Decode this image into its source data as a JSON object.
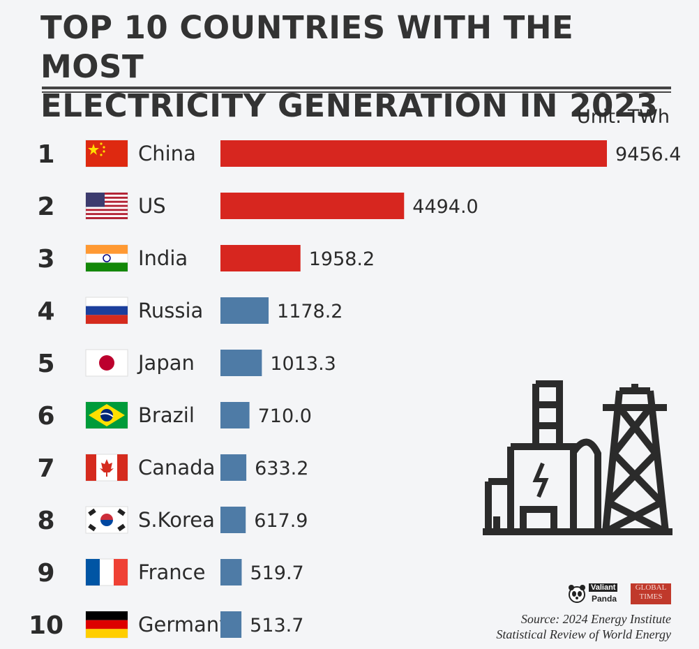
{
  "title_line1": "TOP 10 COUNTRIES WITH THE MOST",
  "title_line2": "ELECTRICITY GENERATION IN 2023",
  "unit": "Unit: TWh",
  "source_line1": "Source: 2024 Energy Institute",
  "source_line2": "Statistical Review of World Energy",
  "logo": {
    "panda_line1": "Valiant",
    "panda_line2": "Panda",
    "gt_line1": "GLOBAL",
    "gt_line2": "TIMES"
  },
  "colors": {
    "top3_bar": "#d7261f",
    "other_bar": "#4e7ba6",
    "text": "#2b2b2b"
  },
  "chart_data": {
    "type": "bar",
    "orientation": "horizontal",
    "title": "TOP 10 COUNTRIES WITH THE MOST ELECTRICITY GENERATION IN 2023",
    "unit": "TWh",
    "ranks": [
      "1",
      "2",
      "3",
      "4",
      "5",
      "6",
      "7",
      "8",
      "9",
      "10"
    ],
    "categories": [
      "China",
      "US",
      "India",
      "Russia",
      "Japan",
      "Brazil",
      "Canada",
      "S.Korea",
      "France",
      "Germany"
    ],
    "values": [
      9456.4,
      4494.0,
      1958.2,
      1178.2,
      1013.3,
      710.0,
      633.2,
      617.9,
      519.7,
      513.7
    ],
    "value_labels": [
      "9456.4",
      "4494.0",
      "1958.2",
      "1178.2",
      "1013.3",
      "710.0",
      "633.2",
      "617.9",
      "519.7",
      "513.7"
    ],
    "flags": [
      "china-flag-icon",
      "us-flag-icon",
      "india-flag-icon",
      "russia-flag-icon",
      "japan-flag-icon",
      "brazil-flag-icon",
      "canada-flag-icon",
      "south-korea-flag-icon",
      "france-flag-icon",
      "germany-flag-icon"
    ]
  }
}
